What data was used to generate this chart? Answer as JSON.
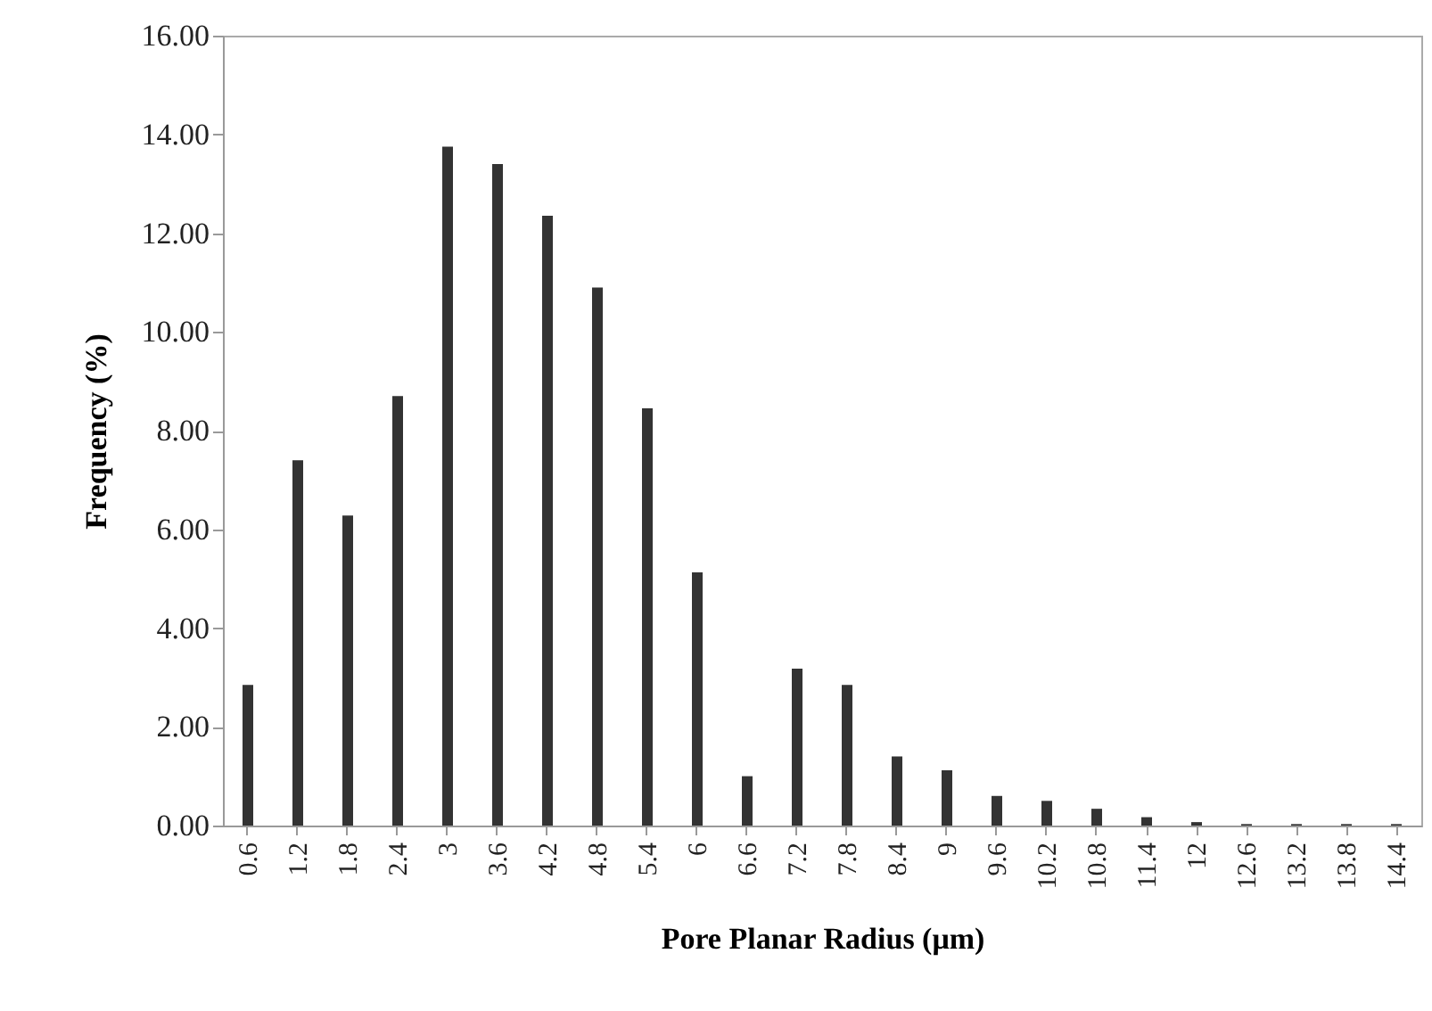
{
  "chart_data": {
    "type": "bar",
    "xlabel": "Pore Planar Radius (μm)",
    "ylabel": "Frequency (%)",
    "categories": [
      "0.6",
      "1.2",
      "1.8",
      "2.4",
      "3",
      "3.6",
      "4.2",
      "4.8",
      "5.4",
      "6",
      "6.6",
      "7.2",
      "7.8",
      "8.4",
      "9",
      "9.6",
      "10.2",
      "10.8",
      "11.4",
      "12",
      "12.6",
      "13.2",
      "13.8",
      "14.4"
    ],
    "values": [
      2.85,
      7.4,
      6.28,
      8.7,
      13.75,
      13.4,
      12.35,
      10.9,
      8.45,
      5.13,
      1.0,
      3.18,
      2.85,
      1.4,
      1.12,
      0.6,
      0.5,
      0.34,
      0.17,
      0.07,
      0.03,
      0.03,
      0.03,
      0.03
    ],
    "color": "#333333",
    "ylim": [
      0,
      16
    ],
    "yticks": [
      {
        "value": 0,
        "label": "0.00"
      },
      {
        "value": 2,
        "label": "2.00"
      },
      {
        "value": 4,
        "label": "4.00"
      },
      {
        "value": 6,
        "label": "6.00"
      },
      {
        "value": 8,
        "label": "8.00"
      },
      {
        "value": 10,
        "label": "10.00"
      },
      {
        "value": 12,
        "label": "12.00"
      },
      {
        "value": 14,
        "label": "14.00"
      },
      {
        "value": 16,
        "label": "16.00"
      }
    ],
    "grid": false
  }
}
